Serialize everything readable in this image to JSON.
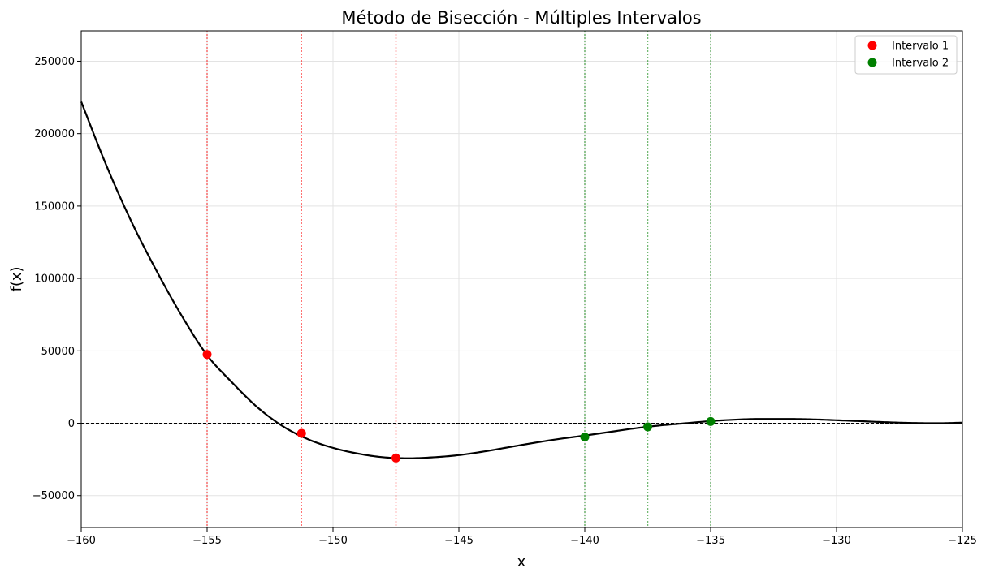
{
  "chart_data": {
    "type": "line",
    "title": "Método de Bisección - Múltiples Intervalos",
    "xlabel": "x",
    "ylabel": "f(x)",
    "xlim": [
      -160,
      -125
    ],
    "ylim": [
      -72000,
      271000
    ],
    "grid": true,
    "legend_position": "top-right",
    "x_ticks": [
      -160,
      -155,
      -150,
      -145,
      -140,
      -135,
      -130,
      -125
    ],
    "x_tick_labels": [
      "−160",
      "−155",
      "−150",
      "−145",
      "−140",
      "−135",
      "−130",
      "−125"
    ],
    "y_ticks": [
      -50000,
      0,
      50000,
      100000,
      150000,
      200000,
      250000
    ],
    "y_tick_labels": [
      "−50000",
      "0",
      "50000",
      "100000",
      "150000",
      "200000",
      "250000"
    ],
    "zero_line": 0,
    "curve": {
      "color": "#000000",
      "x": [
        -160,
        -159,
        -158,
        -157,
        -156,
        -155,
        -154,
        -153,
        -152,
        -151,
        -150,
        -149,
        -148,
        -147,
        -146,
        -145,
        -144,
        -143,
        -142,
        -141,
        -140,
        -139,
        -138,
        -137,
        -136,
        -135,
        -134,
        -133,
        -132,
        -131,
        -130,
        -129,
        -128,
        -127,
        -126,
        -125
      ],
      "y": [
        222000,
        178000,
        139000,
        105000,
        74000,
        47000,
        28000,
        11000,
        -2000,
        -11000,
        -17000,
        -21000,
        -23500,
        -24200,
        -23500,
        -22000,
        -19500,
        -16500,
        -13500,
        -10800,
        -8500,
        -6000,
        -3500,
        -1500,
        0,
        1500,
        2500,
        3000,
        3000,
        2700,
        2100,
        1400,
        700,
        200,
        0,
        400
      ]
    },
    "series": [
      {
        "name": "Intervalo 1",
        "color": "#ff0000",
        "points": [
          {
            "x": -155,
            "y": 47500
          },
          {
            "x": -151.25,
            "y": -7000
          },
          {
            "x": -147.5,
            "y": -24000
          }
        ]
      },
      {
        "name": "Intervalo 2",
        "color": "#008000",
        "points": [
          {
            "x": -140,
            "y": -9500
          },
          {
            "x": -137.5,
            "y": -2500
          },
          {
            "x": -135,
            "y": 1200
          }
        ]
      }
    ]
  }
}
